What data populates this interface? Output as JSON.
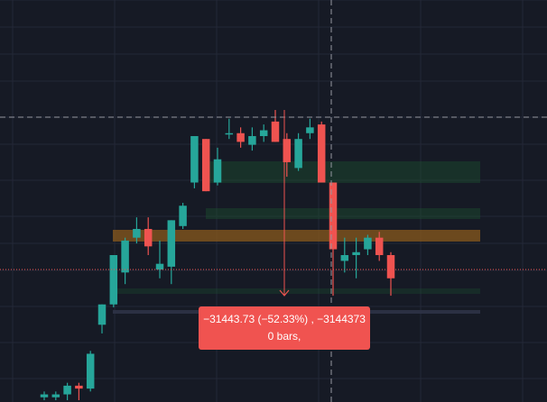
{
  "colors": {
    "background": "#161a25",
    "grid": "#232837",
    "bull": "#26a69a",
    "bear": "#ef5350",
    "crosshair": "#9598a1",
    "price_line": "#ef5350",
    "measure_bg": "#f05350",
    "zone_green": "#1b4d2e",
    "zone_orange": "#8a5a1c"
  },
  "measure": {
    "line1": "−31443.73 (−52.33%) , −3144373",
    "line2": "0 bars,"
  },
  "chart_data": {
    "type": "candlestick",
    "note_values_in_price_units": true,
    "ylim": [
      0,
      100
    ],
    "candles": [
      {
        "o": 1,
        "h": 3,
        "l": 0,
        "c": 2
      },
      {
        "o": 1,
        "h": 3,
        "l": 0,
        "c": 2
      },
      {
        "o": 2,
        "h": 6,
        "l": 0,
        "c": 5
      },
      {
        "o": 5,
        "h": 6,
        "l": 0,
        "c": 4
      },
      {
        "o": 4,
        "h": 17,
        "l": 3,
        "c": 16
      },
      {
        "o": 26,
        "h": 33,
        "l": 23,
        "c": 33
      },
      {
        "o": 33,
        "h": 50,
        "l": 32,
        "c": 50
      },
      {
        "o": 44,
        "h": 56,
        "l": 40,
        "c": 55
      },
      {
        "o": 56,
        "h": 63,
        "l": 54,
        "c": 59
      },
      {
        "o": 59,
        "h": 63,
        "l": 50,
        "c": 53
      },
      {
        "o": 45,
        "h": 55,
        "l": 42,
        "c": 47
      },
      {
        "o": 46,
        "h": 62,
        "l": 40,
        "c": 62
      },
      {
        "o": 60,
        "h": 68,
        "l": 59,
        "c": 67
      },
      {
        "o": 75,
        "h": 91,
        "l": 73,
        "c": 91
      },
      {
        "o": 90,
        "h": 90,
        "l": 72,
        "c": 72
      },
      {
        "o": 75,
        "h": 87,
        "l": 74,
        "c": 83
      },
      {
        "o": 92,
        "h": 97,
        "l": 90,
        "c": 92
      },
      {
        "o": 92,
        "h": 94,
        "l": 87,
        "c": 89
      },
      {
        "o": 88,
        "h": 94,
        "l": 86,
        "c": 91
      },
      {
        "o": 91,
        "h": 95,
        "l": 89,
        "c": 93
      },
      {
        "o": 96,
        "h": 100,
        "l": 89,
        "c": 89
      },
      {
        "o": 90,
        "h": 92,
        "l": 77,
        "c": 82
      },
      {
        "o": 80,
        "h": 92,
        "l": 79,
        "c": 90
      },
      {
        "o": 92,
        "h": 97,
        "l": 90,
        "c": 94
      },
      {
        "o": 95,
        "h": 96,
        "l": 75,
        "c": 75
      },
      {
        "o": 75,
        "h": 75,
        "l": 36,
        "c": 52
      },
      {
        "o": 48,
        "h": 56,
        "l": 44,
        "c": 50
      },
      {
        "o": 50,
        "h": 56,
        "l": 42,
        "c": 51
      },
      {
        "o": 52,
        "h": 57,
        "l": 50,
        "c": 56
      },
      {
        "o": 56,
        "h": 58,
        "l": 48,
        "c": 50
      },
      {
        "o": 50,
        "h": 51,
        "l": 36,
        "c": 42
      }
    ]
  }
}
